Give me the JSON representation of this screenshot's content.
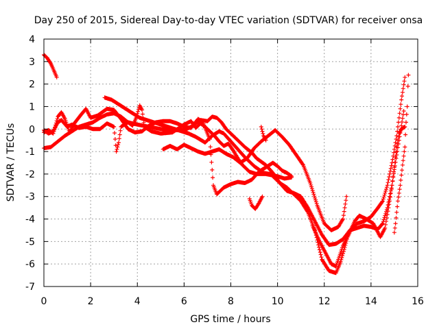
{
  "chart_data": {
    "type": "scatter",
    "title": "Day 250 of 2015, Sidereal Day-to-day VTEC variation (SDTVAR) for receiver onsa",
    "xlabel": "GPS time / hours",
    "ylabel": "SDTVAR / TECUs",
    "xlim": [
      0,
      16
    ],
    "ylim": [
      -7,
      4
    ],
    "xticks": [
      0,
      2,
      4,
      6,
      8,
      10,
      12,
      14,
      16
    ],
    "yticks": [
      -7,
      -6,
      -5,
      -4,
      -3,
      -2,
      -1,
      0,
      1,
      2,
      3,
      4
    ],
    "grid": true,
    "marker": "+",
    "color": "#ff0000",
    "series": [
      {
        "points": [
          [
            0.0,
            3.3
          ],
          [
            0.15,
            3.15
          ],
          [
            0.3,
            2.9
          ],
          [
            0.45,
            2.55
          ],
          [
            0.55,
            2.3
          ]
        ]
      },
      {
        "points": [
          [
            0.0,
            -0.85
          ],
          [
            0.3,
            -0.8
          ],
          [
            0.6,
            -0.55
          ],
          [
            0.9,
            -0.3
          ],
          [
            1.2,
            -0.1
          ],
          [
            1.5,
            0.1
          ],
          [
            1.8,
            0.2
          ],
          [
            2.1,
            0.3
          ],
          [
            2.4,
            0.5
          ],
          [
            2.7,
            0.65
          ],
          [
            3.0,
            0.7
          ],
          [
            3.3,
            0.55
          ],
          [
            3.6,
            0.3
          ],
          [
            3.8,
            0.15
          ],
          [
            3.95,
            0.5
          ],
          [
            4.1,
            1.05
          ],
          [
            4.2,
            0.85
          ],
          [
            4.3,
            0.1
          ],
          [
            4.6,
            -0.1
          ],
          [
            5.0,
            -0.2
          ],
          [
            5.5,
            -0.15
          ],
          [
            6.0,
            0.2
          ],
          [
            6.3,
            0.35
          ],
          [
            6.5,
            0.05
          ],
          [
            6.7,
            0.25
          ],
          [
            6.9,
            0.1
          ],
          [
            7.1,
            -0.1
          ],
          [
            7.3,
            -0.3
          ],
          [
            7.5,
            -0.55
          ],
          [
            7.7,
            -0.75
          ],
          [
            7.9,
            -0.65
          ],
          [
            8.1,
            -0.95
          ],
          [
            8.3,
            -1.3
          ],
          [
            8.5,
            -1.6
          ],
          [
            8.8,
            -1.9
          ],
          [
            9.1,
            -2.0
          ],
          [
            9.5,
            -2.0
          ],
          [
            10.0,
            -2.1
          ],
          [
            10.3,
            -2.2
          ],
          [
            10.6,
            -2.15
          ]
        ]
      },
      {
        "points": [
          [
            0.0,
            -0.15
          ],
          [
            0.2,
            -0.05
          ],
          [
            0.4,
            -0.2
          ],
          [
            0.6,
            0.55
          ],
          [
            0.75,
            0.75
          ],
          [
            0.9,
            0.45
          ],
          [
            1.1,
            -0.15
          ],
          [
            1.3,
            0.25
          ],
          [
            1.6,
            0.65
          ],
          [
            1.8,
            0.9
          ],
          [
            2.0,
            0.5
          ],
          [
            2.3,
            0.6
          ],
          [
            2.7,
            0.9
          ],
          [
            3.0,
            0.85
          ],
          [
            3.3,
            0.45
          ],
          [
            3.6,
            0.0
          ],
          [
            3.9,
            -0.15
          ],
          [
            4.2,
            -0.1
          ],
          [
            4.5,
            0.15
          ],
          [
            4.8,
            0.3
          ],
          [
            5.1,
            0.35
          ],
          [
            5.4,
            0.35
          ],
          [
            5.7,
            0.25
          ],
          [
            6.0,
            0.1
          ],
          [
            6.3,
            0.05
          ],
          [
            6.6,
            0.45
          ],
          [
            6.8,
            0.3
          ],
          [
            7.1,
            -0.45
          ],
          [
            7.25,
            -2.5
          ],
          [
            7.4,
            -2.9
          ],
          [
            7.7,
            -2.6
          ],
          [
            8.0,
            -2.45
          ],
          [
            8.3,
            -2.35
          ],
          [
            8.6,
            -2.4
          ],
          [
            8.9,
            -2.25
          ],
          [
            9.2,
            -1.9
          ],
          [
            9.5,
            -1.7
          ],
          [
            9.8,
            -1.5
          ],
          [
            10.0,
            -1.65
          ],
          [
            10.2,
            -1.85
          ],
          [
            10.4,
            -1.95
          ],
          [
            10.6,
            -2.1
          ]
        ]
      },
      {
        "points": [
          [
            0.0,
            -0.05
          ],
          [
            0.2,
            -0.2
          ],
          [
            0.4,
            -0.1
          ],
          [
            0.6,
            0.3
          ],
          [
            0.75,
            0.4
          ],
          [
            1.0,
            0.1
          ],
          [
            1.2,
            0.2
          ],
          [
            1.5,
            0.05
          ],
          [
            1.8,
            0.1
          ],
          [
            2.1,
            0.0
          ],
          [
            2.4,
            0.0
          ],
          [
            2.7,
            0.25
          ],
          [
            3.0,
            0.1
          ],
          [
            3.1,
            -1.0
          ],
          [
            3.2,
            -0.6
          ],
          [
            3.3,
            0.1
          ],
          [
            3.6,
            0.3
          ],
          [
            4.0,
            0.2
          ],
          [
            4.5,
            0.1
          ],
          [
            5.0,
            0.0
          ],
          [
            5.5,
            -0.05
          ],
          [
            6.0,
            -0.05
          ],
          [
            6.3,
            0.1
          ],
          [
            6.7,
            0.4
          ],
          [
            7.0,
            0.35
          ],
          [
            7.2,
            0.55
          ],
          [
            7.4,
            0.5
          ],
          [
            7.6,
            0.3
          ],
          [
            7.8,
            0.0
          ],
          [
            8.0,
            -0.2
          ],
          [
            8.3,
            -0.5
          ],
          [
            8.6,
            -0.8
          ],
          [
            8.9,
            -1.05
          ],
          [
            9.1,
            -1.3
          ],
          [
            9.3,
            -1.45
          ],
          [
            9.5,
            -1.6
          ],
          [
            9.8,
            -1.95
          ],
          [
            10.1,
            -2.4
          ],
          [
            10.4,
            -2.75
          ],
          [
            10.7,
            -2.85
          ],
          [
            11.0,
            -3.0
          ],
          [
            11.3,
            -3.5
          ],
          [
            11.6,
            -4.1
          ],
          [
            11.9,
            -4.7
          ],
          [
            12.2,
            -5.15
          ],
          [
            12.5,
            -5.1
          ],
          [
            12.8,
            -4.9
          ],
          [
            13.1,
            -4.5
          ],
          [
            13.4,
            -4.4
          ],
          [
            13.7,
            -4.3
          ],
          [
            14.0,
            -4.35
          ],
          [
            14.3,
            -4.45
          ],
          [
            14.5,
            -4.2
          ],
          [
            14.7,
            -3.5
          ],
          [
            14.9,
            -2.5
          ],
          [
            15.0,
            -1.7
          ],
          [
            15.1,
            -0.8
          ],
          [
            15.2,
            -0.2
          ],
          [
            15.3,
            0.0
          ],
          [
            15.45,
            0.1
          ]
        ]
      },
      {
        "points": [
          [
            2.6,
            1.4
          ],
          [
            2.9,
            1.3
          ],
          [
            3.2,
            1.1
          ],
          [
            3.5,
            0.9
          ],
          [
            3.8,
            0.7
          ],
          [
            4.1,
            0.5
          ],
          [
            4.4,
            0.4
          ],
          [
            4.7,
            0.3
          ],
          [
            5.0,
            0.2
          ],
          [
            5.3,
            0.1
          ],
          [
            5.6,
            0.0
          ],
          [
            5.9,
            -0.1
          ],
          [
            6.2,
            -0.2
          ],
          [
            6.5,
            -0.35
          ],
          [
            6.9,
            -0.6
          ],
          [
            7.2,
            -0.3
          ],
          [
            7.5,
            -0.1
          ],
          [
            7.7,
            -0.2
          ],
          [
            8.0,
            -0.55
          ],
          [
            8.3,
            -0.9
          ],
          [
            8.6,
            -1.25
          ],
          [
            9.0,
            -1.65
          ],
          [
            9.4,
            -1.95
          ],
          [
            9.7,
            -2.0
          ],
          [
            9.9,
            -2.2
          ],
          [
            10.1,
            -2.4
          ],
          [
            10.4,
            -2.6
          ],
          [
            10.7,
            -2.9
          ],
          [
            11.0,
            -3.2
          ],
          [
            11.3,
            -3.7
          ],
          [
            11.6,
            -4.5
          ],
          [
            11.9,
            -5.8
          ],
          [
            12.2,
            -6.3
          ],
          [
            12.5,
            -6.4
          ],
          [
            12.7,
            -5.9
          ],
          [
            13.0,
            -4.8
          ],
          [
            13.3,
            -4.1
          ],
          [
            13.5,
            -3.85
          ],
          [
            13.8,
            -4.0
          ],
          [
            14.1,
            -4.2
          ],
          [
            14.4,
            -4.8
          ],
          [
            14.6,
            -4.4
          ],
          [
            14.8,
            -3.2
          ],
          [
            15.0,
            -1.8
          ],
          [
            15.2,
            -0.5
          ],
          [
            15.4,
            0.8
          ]
        ]
      },
      {
        "points": [
          [
            5.1,
            -0.9
          ],
          [
            5.4,
            -0.75
          ],
          [
            5.7,
            -0.9
          ],
          [
            6.0,
            -0.7
          ],
          [
            6.3,
            -0.85
          ],
          [
            6.6,
            -1.0
          ],
          [
            6.9,
            -1.1
          ],
          [
            7.2,
            -1.0
          ],
          [
            7.5,
            -0.9
          ],
          [
            7.8,
            -1.1
          ],
          [
            8.1,
            -1.25
          ],
          [
            8.4,
            -1.5
          ],
          [
            8.7,
            -1.3
          ],
          [
            9.0,
            -0.85
          ],
          [
            9.3,
            -0.55
          ],
          [
            9.6,
            -0.3
          ],
          [
            9.9,
            -0.05
          ],
          [
            10.2,
            -0.35
          ],
          [
            10.5,
            -0.7
          ],
          [
            10.8,
            -1.15
          ],
          [
            11.1,
            -1.6
          ],
          [
            11.4,
            -2.4
          ],
          [
            11.7,
            -3.4
          ],
          [
            12.0,
            -4.2
          ],
          [
            12.3,
            -4.5
          ],
          [
            12.6,
            -4.35
          ],
          [
            12.8,
            -4.0
          ],
          [
            12.95,
            -3.0
          ]
        ]
      },
      {
        "points": [
          [
            9.3,
            0.1
          ],
          [
            9.4,
            -0.3
          ],
          [
            9.5,
            -0.5
          ]
        ]
      },
      {
        "points": [
          [
            8.8,
            -3.1
          ],
          [
            8.9,
            -3.4
          ],
          [
            9.05,
            -3.55
          ],
          [
            9.2,
            -3.3
          ],
          [
            9.35,
            -3.0
          ]
        ]
      },
      {
        "points": [
          [
            11.5,
            -4.3
          ],
          [
            11.8,
            -5.0
          ],
          [
            12.1,
            -5.6
          ],
          [
            12.3,
            -6.0
          ],
          [
            12.5,
            -6.1
          ],
          [
            12.8,
            -5.2
          ],
          [
            13.1,
            -4.5
          ],
          [
            13.4,
            -4.2
          ],
          [
            13.7,
            -4.1
          ],
          [
            14.0,
            -3.9
          ],
          [
            14.3,
            -3.5
          ],
          [
            14.5,
            -3.2
          ],
          [
            14.7,
            -2.5
          ],
          [
            14.9,
            -1.5
          ],
          [
            15.1,
            -0.3
          ],
          [
            15.3,
            1.3
          ],
          [
            15.45,
            2.3
          ]
        ]
      },
      {
        "points": [
          [
            15.0,
            -4.6
          ],
          [
            15.05,
            -4.2
          ],
          [
            15.15,
            -3.2
          ],
          [
            15.25,
            -2.5
          ],
          [
            15.35,
            -1.6
          ],
          [
            15.45,
            -0.8
          ],
          [
            15.5,
            0.3
          ],
          [
            15.55,
            1.0
          ],
          [
            15.58,
            1.9
          ],
          [
            15.6,
            2.4
          ]
        ]
      }
    ]
  }
}
